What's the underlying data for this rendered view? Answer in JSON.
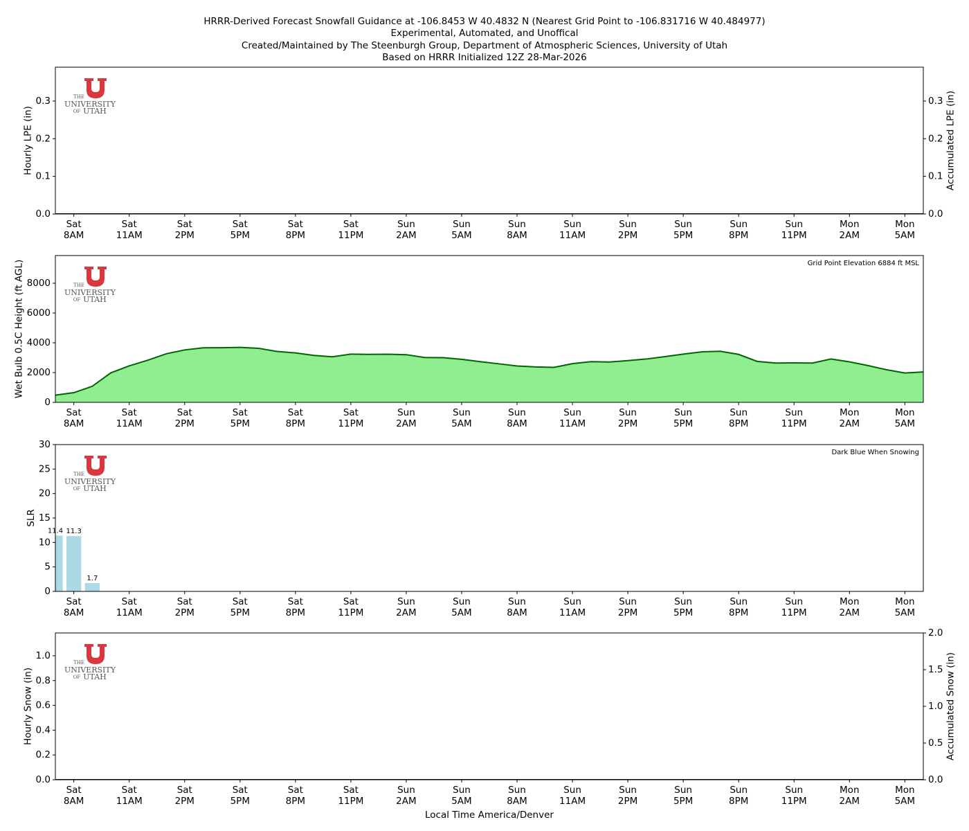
{
  "title": [
    "HRRR-Derived Forecast Snowfall Guidance at -106.8453 W 40.4832 N (Nearest Grid Point to -106.831716 W 40.484977)",
    "Experimental, Automated, and Unoffical",
    "Created/Maintained by The Steenburgh Group, Department of Atmospheric Sciences, University of Utah",
    "Based on HRRR Initialized 12Z 28-Mar-2026"
  ],
  "logo": [
    "THE",
    "UNIVERSITY",
    "OF",
    "UTAH"
  ],
  "chart_data": [
    {
      "type": "bar",
      "ylabel": "Hourly LPE (in)",
      "y2label": "Accumulated LPE (in)",
      "categories": [
        null,
        "Sat 8AM",
        null,
        null,
        "Sat 11AM",
        null,
        null,
        "Sat 2PM",
        null,
        null,
        "Sat 5PM",
        null,
        null,
        "Sat 8PM",
        null,
        null,
        "Sat 11PM",
        null,
        null,
        "Sun 2AM",
        null,
        null,
        "Sun 5AM",
        null,
        null,
        "Sun 8AM",
        null,
        null,
        "Sun 11AM",
        null,
        null,
        "Sun 2PM",
        null,
        null,
        "Sun 5PM",
        null,
        null,
        "Sun 8PM",
        null,
        null,
        "Sun 11PM",
        null,
        null,
        "Mon 2AM",
        null,
        null,
        "Mon 5AM",
        null
      ],
      "ylim": [
        0,
        0.39
      ],
      "yticks": [
        {
          "value": 0,
          "label": "0.0"
        },
        0.1,
        0.2,
        0.3
      ],
      "y2lim": [
        0,
        0.39
      ],
      "y2ticks": [
        {
          "value": 0,
          "label": "0.0"
        },
        0.1,
        0.2,
        0.3
      ],
      "series": [
        {
          "type": "bar",
          "color": "#1e90ff",
          "values": [
            0,
            0,
            0,
            0,
            0,
            0,
            0,
            0,
            0,
            0,
            0,
            0,
            0,
            0,
            0,
            0,
            0,
            0,
            0,
            0,
            0,
            0,
            0,
            0,
            0,
            0,
            0,
            0,
            0,
            0,
            0,
            0,
            0,
            0,
            0,
            0,
            0,
            0,
            0,
            0,
            0,
            0,
            0,
            0,
            0,
            0,
            0,
            0
          ]
        },
        {
          "type": "line",
          "axis": "y2",
          "color": "#000000",
          "values": [
            0,
            0,
            0,
            0,
            0,
            0,
            0,
            0,
            0,
            0,
            0,
            0,
            0,
            0,
            0,
            0,
            0,
            0,
            0,
            0,
            0,
            0,
            0,
            0,
            0,
            0,
            0,
            0,
            0,
            0,
            0,
            0,
            0,
            0,
            0,
            0,
            0,
            0,
            0,
            0,
            0,
            0,
            0,
            0,
            0,
            0,
            0,
            0
          ]
        }
      ]
    },
    {
      "type": "area",
      "ylabel": "Wet Bulb 0.5C Height (ft AGL)",
      "annotation": "Grid Point Elevation 6884 ft MSL",
      "categories": [
        null,
        "Sat 8AM",
        null,
        null,
        "Sat 11AM",
        null,
        null,
        "Sat 2PM",
        null,
        null,
        "Sat 5PM",
        null,
        null,
        "Sat 8PM",
        null,
        null,
        "Sat 11PM",
        null,
        null,
        "Sun 2AM",
        null,
        null,
        "Sun 5AM",
        null,
        null,
        "Sun 8AM",
        null,
        null,
        "Sun 11AM",
        null,
        null,
        "Sun 2PM",
        null,
        null,
        "Sun 5PM",
        null,
        null,
        "Sun 8PM",
        null,
        null,
        "Sun 11PM",
        null,
        null,
        "Mon 2AM",
        null,
        null,
        "Mon 5AM",
        null
      ],
      "ylim": [
        0,
        9860
      ],
      "yticks": [
        0,
        2000,
        4000,
        6000,
        8000
      ],
      "series": [
        {
          "type": "area",
          "color": "#006400",
          "fill": "#90ee90",
          "values": [
            480,
            650,
            1080,
            1980,
            2450,
            2830,
            3260,
            3520,
            3660,
            3670,
            3690,
            3630,
            3420,
            3320,
            3150,
            3060,
            3240,
            3220,
            3230,
            3200,
            3010,
            3000,
            2890,
            2730,
            2590,
            2440,
            2380,
            2350,
            2600,
            2730,
            2710,
            2800,
            2910,
            3070,
            3240,
            3390,
            3430,
            3220,
            2750,
            2640,
            2650,
            2640,
            2910,
            2720,
            2470,
            2190,
            1970,
            2040
          ]
        }
      ]
    },
    {
      "type": "bar",
      "ylabel": "SLR",
      "annotation": "Dark Blue When Snowing",
      "categories": [
        null,
        "Sat 8AM",
        null,
        null,
        "Sat 11AM",
        null,
        null,
        "Sat 2PM",
        null,
        null,
        "Sat 5PM",
        null,
        null,
        "Sat 8PM",
        null,
        null,
        "Sat 11PM",
        null,
        null,
        "Sun 2AM",
        null,
        null,
        "Sun 5AM",
        null,
        null,
        "Sun 8AM",
        null,
        null,
        "Sun 11AM",
        null,
        null,
        "Sun 2PM",
        null,
        null,
        "Sun 5PM",
        null,
        null,
        "Sun 8PM",
        null,
        null,
        "Sun 11PM",
        null,
        null,
        "Mon 2AM",
        null,
        null,
        "Mon 5AM",
        null
      ],
      "ylim": [
        0,
        30
      ],
      "yticks": [
        0,
        5,
        10,
        15,
        20,
        25,
        30
      ],
      "series": [
        {
          "type": "bar",
          "color": "#add8e6",
          "show_values": true,
          "values": [
            11.4,
            11.3,
            1.7,
            null,
            null,
            null,
            null,
            null,
            null,
            null,
            null,
            null,
            null,
            null,
            null,
            null,
            null,
            null,
            null,
            null,
            null,
            null,
            null,
            null,
            null,
            null,
            null,
            null,
            null,
            null,
            null,
            null,
            null,
            null,
            null,
            null,
            null,
            null,
            null,
            null,
            null,
            null,
            null,
            null,
            null,
            null,
            null,
            null
          ]
        }
      ]
    },
    {
      "type": "bar",
      "ylabel": "Hourly Snow (in)",
      "y2label": "Accumulated Snow (in)",
      "xlabel": "Local Time America/Denver",
      "categories": [
        null,
        "Sat 8AM",
        null,
        null,
        "Sat 11AM",
        null,
        null,
        "Sat 2PM",
        null,
        null,
        "Sat 5PM",
        null,
        null,
        "Sat 8PM",
        null,
        null,
        "Sat 11PM",
        null,
        null,
        "Sun 2AM",
        null,
        null,
        "Sun 5AM",
        null,
        null,
        "Sun 8AM",
        null,
        null,
        "Sun 11AM",
        null,
        null,
        "Sun 2PM",
        null,
        null,
        "Sun 5PM",
        null,
        null,
        "Sun 8PM",
        null,
        null,
        "Sun 11PM",
        null,
        null,
        "Mon 2AM",
        null,
        null,
        "Mon 5AM",
        null
      ],
      "ylim": [
        0,
        1.184
      ],
      "yticks": [
        {
          "value": 0,
          "label": "0.0"
        },
        0.2,
        0.4,
        0.6,
        0.8,
        {
          "value": 1,
          "label": "1.0"
        }
      ],
      "y2lim": [
        0,
        2
      ],
      "y2ticks": [
        {
          "value": 0,
          "label": "0.0"
        },
        0.5,
        {
          "value": 1,
          "label": "1.0"
        },
        1.5,
        {
          "value": 2,
          "label": "2.0"
        }
      ],
      "series": [
        {
          "type": "bar",
          "color": "#00008b",
          "values": [
            0,
            0,
            0,
            0,
            0,
            0,
            0,
            0,
            0,
            0,
            0,
            0,
            0,
            0,
            0,
            0,
            0,
            0,
            0,
            0,
            0,
            0,
            0,
            0,
            0,
            0,
            0,
            0,
            0,
            0,
            0,
            0,
            0,
            0,
            0,
            0,
            0,
            0,
            0,
            0,
            0,
            0,
            0,
            0,
            0,
            0,
            0,
            0
          ]
        },
        {
          "type": "line",
          "axis": "y2",
          "color": "#000000",
          "values": [
            0,
            0,
            0,
            0,
            0,
            0,
            0,
            0,
            0,
            0,
            0,
            0,
            0,
            0,
            0,
            0,
            0,
            0,
            0,
            0,
            0,
            0,
            0,
            0,
            0,
            0,
            0,
            0,
            0,
            0,
            0,
            0,
            0,
            0,
            0,
            0,
            0,
            0,
            0,
            0,
            0,
            0,
            0,
            0,
            0,
            0,
            0,
            0
          ]
        }
      ]
    }
  ]
}
